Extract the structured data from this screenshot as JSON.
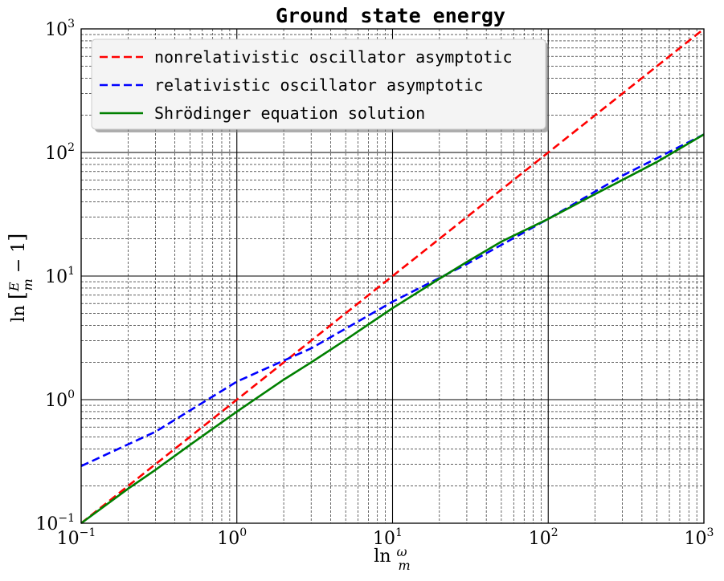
{
  "chart_data": {
    "type": "line",
    "title": "Ground state energy",
    "xlabel": "ln ω/m",
    "ylabel": "ln [E/m − 1]",
    "xscale": "log",
    "yscale": "log",
    "xlim": [
      0.1,
      1000
    ],
    "ylim": [
      0.1,
      1000
    ],
    "grid": "major solid, minor dashed",
    "legend_position": "top-left",
    "x_ticks": [
      {
        "base": "10",
        "exp": "−1",
        "value": 0.1
      },
      {
        "base": "10",
        "exp": "0",
        "value": 1
      },
      {
        "base": "10",
        "exp": "1",
        "value": 10
      },
      {
        "base": "10",
        "exp": "2",
        "value": 100
      },
      {
        "base": "10",
        "exp": "3",
        "value": 1000
      }
    ],
    "y_ticks": [
      {
        "base": "10",
        "exp": "−1",
        "value": 0.1
      },
      {
        "base": "10",
        "exp": "0",
        "value": 1
      },
      {
        "base": "10",
        "exp": "1",
        "value": 10
      },
      {
        "base": "10",
        "exp": "2",
        "value": 100
      },
      {
        "base": "10",
        "exp": "3",
        "value": 1000
      }
    ],
    "series": [
      {
        "name": "nonrelativistic oscillator asymptotic",
        "color": "#ff0000",
        "style": "dashed",
        "x": [
          0.1,
          0.3,
          1,
          3,
          10,
          30,
          100,
          300,
          1000
        ],
        "y": [
          0.1,
          0.3,
          1,
          3,
          10,
          30,
          100,
          300,
          1000
        ]
      },
      {
        "name": "relativistic oscillator asymptotic",
        "color": "#0000ff",
        "style": "dashed",
        "x": [
          0.1,
          0.3,
          1,
          3,
          10,
          30,
          100,
          300,
          1000
        ],
        "y": [
          0.29,
          0.55,
          1.4,
          2.6,
          6.2,
          12.5,
          29,
          65,
          140
        ]
      },
      {
        "name": "Shrödinger equation solution",
        "color": "#008000",
        "style": "solid",
        "x": [
          0.1,
          0.2,
          0.3,
          0.5,
          1,
          2,
          3,
          5,
          10,
          20,
          30,
          50,
          100,
          200,
          300,
          500,
          1000
        ],
        "y": [
          0.1,
          0.19,
          0.27,
          0.43,
          0.8,
          1.45,
          2.0,
          3.05,
          5.5,
          9.5,
          13,
          19,
          29,
          46,
          60,
          84,
          140
        ]
      }
    ]
  }
}
